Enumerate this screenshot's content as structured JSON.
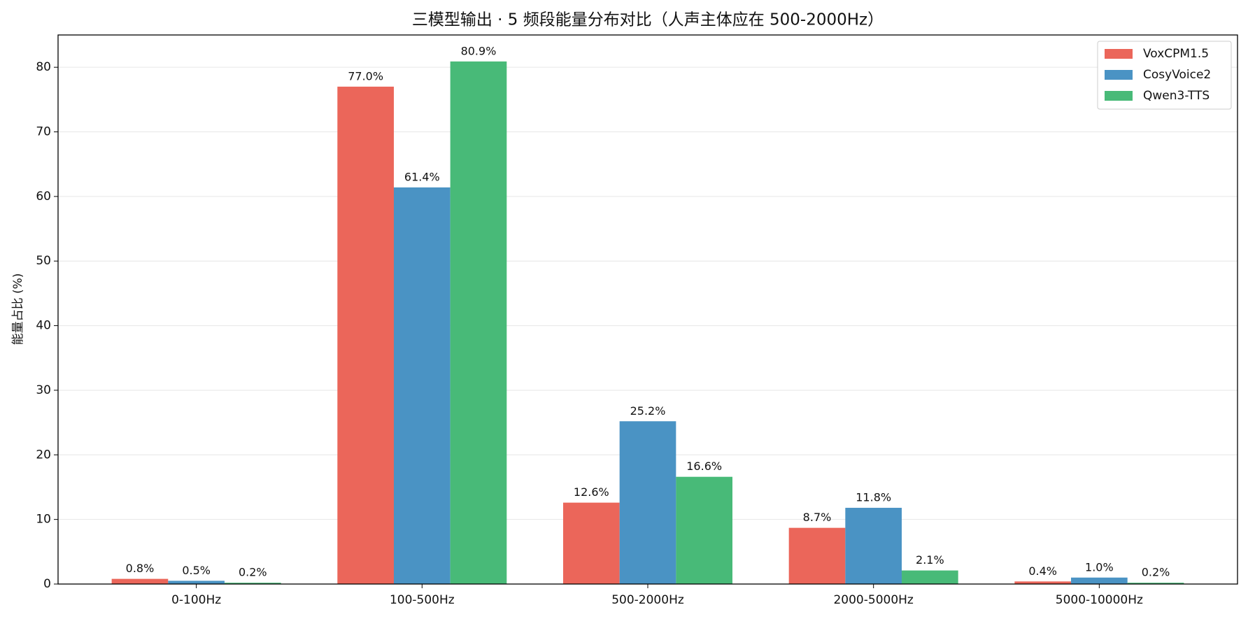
{
  "chart_data": {
    "type": "bar",
    "title": "三模型输出 · 5 频段能量分布对比（人声主体应在 500-2000Hz）",
    "y_label": "能量占比 (%)",
    "categories": [
      "0-100Hz",
      "100-500Hz",
      "500-2000Hz",
      "2000-5000Hz",
      "5000-10000Hz"
    ],
    "series": [
      {
        "name": "VoxCPM1.5",
        "color": "#eb665a",
        "values": [
          0.8,
          77.0,
          12.6,
          8.7,
          0.4
        ],
        "value_labels": [
          "0.8%",
          "77.0%",
          "12.6%",
          "8.7%",
          "0.4%"
        ]
      },
      {
        "name": "CosyVoice2",
        "color": "#4a93c4",
        "values": [
          0.5,
          61.4,
          25.2,
          11.8,
          1.0
        ],
        "value_labels": [
          "0.5%",
          "61.4%",
          "25.2%",
          "11.8%",
          "1.0%"
        ]
      },
      {
        "name": "Qwen3-TTS",
        "color": "#48ba78",
        "values": [
          0.2,
          80.9,
          16.6,
          2.1,
          0.2
        ],
        "value_labels": [
          "0.2%",
          "80.9%",
          "16.6%",
          "2.1%",
          "0.2%"
        ]
      }
    ],
    "ylim": [
      0,
      85
    ],
    "yticks": [
      0,
      10,
      20,
      30,
      40,
      50,
      60,
      70,
      80
    ],
    "grid": true,
    "legend": "upper right"
  }
}
